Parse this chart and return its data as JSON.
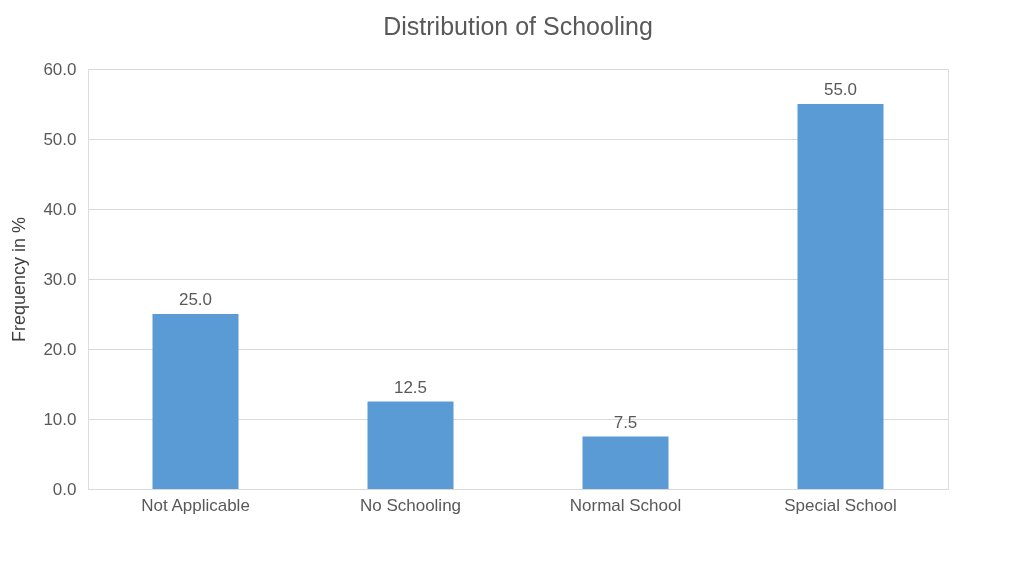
{
  "chart_data": {
    "type": "bar",
    "title": "Distribution of Schooling",
    "ylabel": "Frequency in %",
    "categories": [
      "Not Applicable",
      "No Schooling",
      "Normal School",
      "Special School"
    ],
    "values": [
      25.0,
      12.5,
      7.5,
      55.0
    ],
    "value_labels": [
      "25.0",
      "12.5",
      "7.5",
      "55.0"
    ],
    "color": "#5b9bd5",
    "ylim": [
      0,
      60
    ],
    "yticks": [
      {
        "value": 0,
        "label": "0.0"
      },
      {
        "value": 10,
        "label": "10.0"
      },
      {
        "value": 20,
        "label": "20.0"
      },
      {
        "value": 30,
        "label": "30.0"
      },
      {
        "value": 40,
        "label": "40.0"
      },
      {
        "value": 50,
        "label": "50.0"
      },
      {
        "value": 60,
        "label": "60.0"
      }
    ],
    "grid": "y"
  }
}
